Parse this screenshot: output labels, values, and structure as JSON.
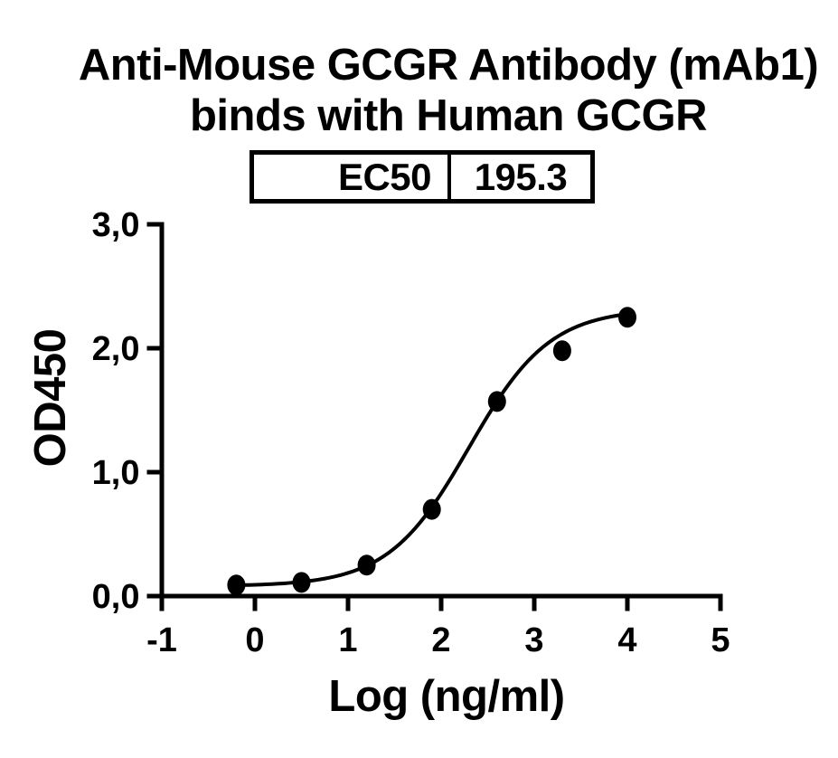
{
  "header": {
    "title_line1": "Anti-Mouse GCGR Antibody (mAb1)",
    "title_line2": "binds with Human GCGR"
  },
  "chart_data": {
    "type": "scatter",
    "title": [
      "Anti-Mouse GCGR Antibody (mAb1)",
      "binds with Human GCGR"
    ],
    "xlabel": "Log (ng/ml)",
    "ylabel": "OD450",
    "xlim": [
      -1,
      5
    ],
    "ylim": [
      0,
      3
    ],
    "x_ticks": [
      -1,
      0,
      1,
      2,
      3,
      4,
      5
    ],
    "x_tick_labels": [
      "-1",
      "0",
      "1",
      "2",
      "3",
      "4",
      "5"
    ],
    "y_ticks": [
      0,
      1,
      2,
      3
    ],
    "y_tick_labels": [
      "0,0",
      "1,0",
      "2,0",
      "3,0"
    ],
    "series": [
      {
        "name": "Anti-Mouse GCGR Antibody (mAb1) binds with Human GCGR",
        "x": [
          -0.2,
          0.5,
          1.2,
          1.9,
          2.6,
          3.3,
          4.0
        ],
        "y": [
          0.09,
          0.11,
          0.25,
          0.7,
          1.57,
          1.98,
          2.25
        ]
      }
    ],
    "fit_curve": {
      "model": "4PL-sigmoid",
      "bottom": 0.08,
      "top": 2.32,
      "log_ec50": 2.3,
      "hill": 1.0,
      "x_start": -0.2,
      "x_end": 4.0
    },
    "ec50": {
      "label": "EC50",
      "value": "195.3"
    },
    "marker_color": "#000000",
    "line_color": "#000000",
    "axis_color": "#000000",
    "background": "#ffffff",
    "grid": false,
    "legend": false
  }
}
